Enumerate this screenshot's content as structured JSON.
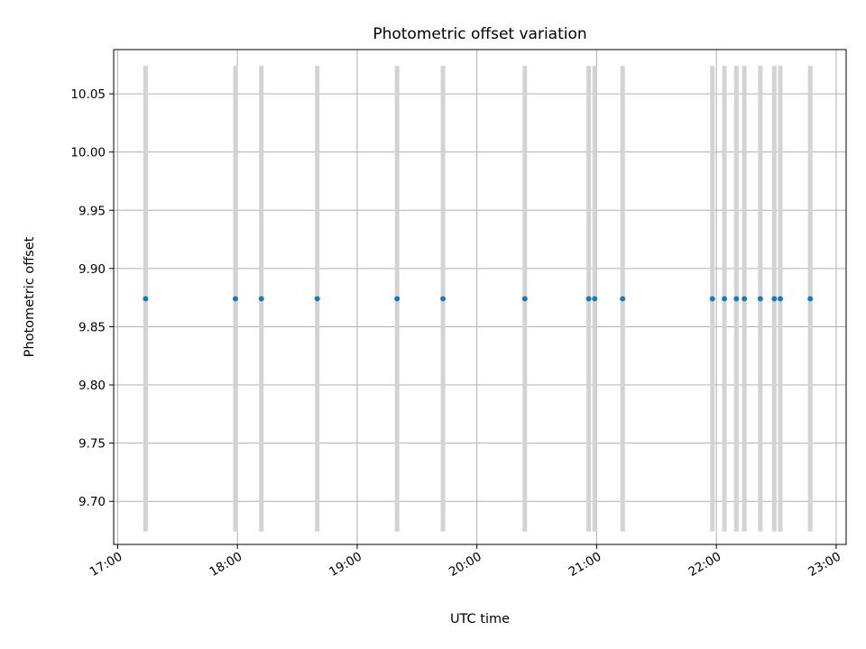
{
  "chart_data": {
    "type": "scatter",
    "title": "Photometric offset variation",
    "xlabel": "UTC time",
    "ylabel": "Photometric offset",
    "x_unit": "UTC time of day",
    "xlim": [
      "16:58",
      "23:05"
    ],
    "ylim": [
      9.663,
      10.088
    ],
    "grid": true,
    "x_ticks": [
      "17:00",
      "18:00",
      "19:00",
      "20:00",
      "21:00",
      "22:00",
      "23:00"
    ],
    "y_ticks": [
      "9.70",
      "9.75",
      "9.80",
      "9.85",
      "9.90",
      "9.95",
      "10.00",
      "10.05"
    ],
    "error_bar_range": [
      9.674,
      10.073
    ],
    "colors": {
      "marker": "#1f77b4",
      "error_bar": "#d3d3d3",
      "grid": "#b0b0b0"
    },
    "series": [
      {
        "x": [
          "17:14",
          "17:59",
          "18:12",
          "18:40",
          "19:20",
          "19:43",
          "20:24",
          "20:56",
          "20:59",
          "21:13",
          "21:58",
          "22:04",
          "22:10",
          "22:14",
          "22:22",
          "22:29",
          "22:32",
          "22:47"
        ],
        "y": [
          9.874,
          9.874,
          9.874,
          9.874,
          9.874,
          9.874,
          9.874,
          9.874,
          9.874,
          9.874,
          9.874,
          9.874,
          9.874,
          9.874,
          9.874,
          9.874,
          9.874,
          9.874
        ],
        "yerr": [
          0.2,
          0.2,
          0.2,
          0.2,
          0.2,
          0.2,
          0.2,
          0.2,
          0.2,
          0.2,
          0.2,
          0.2,
          0.2,
          0.2,
          0.2,
          0.2,
          0.2,
          0.2
        ]
      }
    ]
  }
}
